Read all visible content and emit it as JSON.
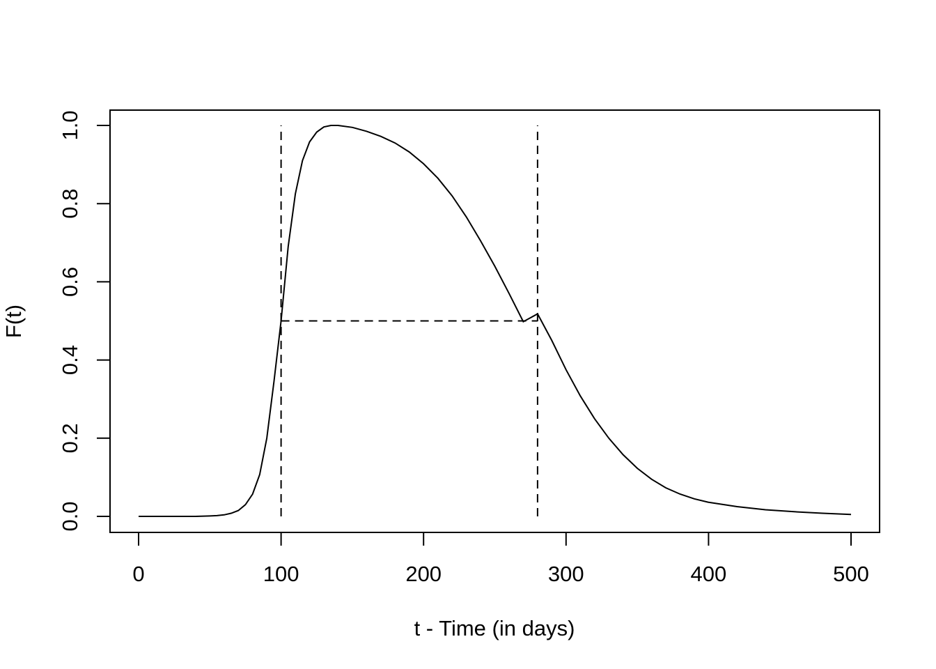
{
  "chart_data": {
    "type": "line",
    "title": "",
    "xlabel": "t - Time (in days)",
    "ylabel": "F(t)",
    "xlim": [
      0,
      500
    ],
    "ylim": [
      0,
      1
    ],
    "x_ticks": [
      "0",
      "100",
      "200",
      "300",
      "400",
      "500"
    ],
    "y_ticks": [
      "0.0",
      "0.2",
      "0.4",
      "0.6",
      "0.8",
      "1.0"
    ],
    "grid": false,
    "legend": "none",
    "series": [
      {
        "x": [
          0,
          20,
          40,
          50,
          55,
          60,
          65,
          70,
          75,
          80,
          85,
          90,
          95,
          100,
          105,
          110,
          115,
          120,
          125,
          130,
          135,
          140,
          150,
          160,
          170,
          180,
          190,
          200,
          210,
          220,
          230,
          240,
          250,
          260,
          270,
          280,
          290,
          300,
          310,
          320,
          330,
          340,
          350,
          360,
          370,
          380,
          390,
          400,
          420,
          440,
          460,
          480,
          500
        ],
        "y": [
          0.0,
          0.0,
          0.0,
          0.001,
          0.002,
          0.004,
          0.008,
          0.015,
          0.03,
          0.057,
          0.107,
          0.2,
          0.345,
          0.5,
          0.69,
          0.825,
          0.91,
          0.958,
          0.983,
          0.996,
          1.0,
          1.0,
          0.995,
          0.985,
          0.972,
          0.955,
          0.932,
          0.902,
          0.865,
          0.82,
          0.766,
          0.705,
          0.64,
          0.57,
          0.498,
          0.518,
          0.45,
          0.375,
          0.308,
          0.25,
          0.2,
          0.158,
          0.123,
          0.095,
          0.073,
          0.057,
          0.045,
          0.036,
          0.025,
          0.017,
          0.012,
          0.008,
          0.005
        ]
      }
    ],
    "reference_lines": [
      {
        "kind": "vertical",
        "x": 100,
        "y_from": 0,
        "y_to": 1
      },
      {
        "kind": "vertical",
        "x": 280,
        "y_from": 0,
        "y_to": 1
      },
      {
        "kind": "horizontal",
        "y": 0.5,
        "x_from": 100,
        "x_to": 280
      }
    ]
  }
}
